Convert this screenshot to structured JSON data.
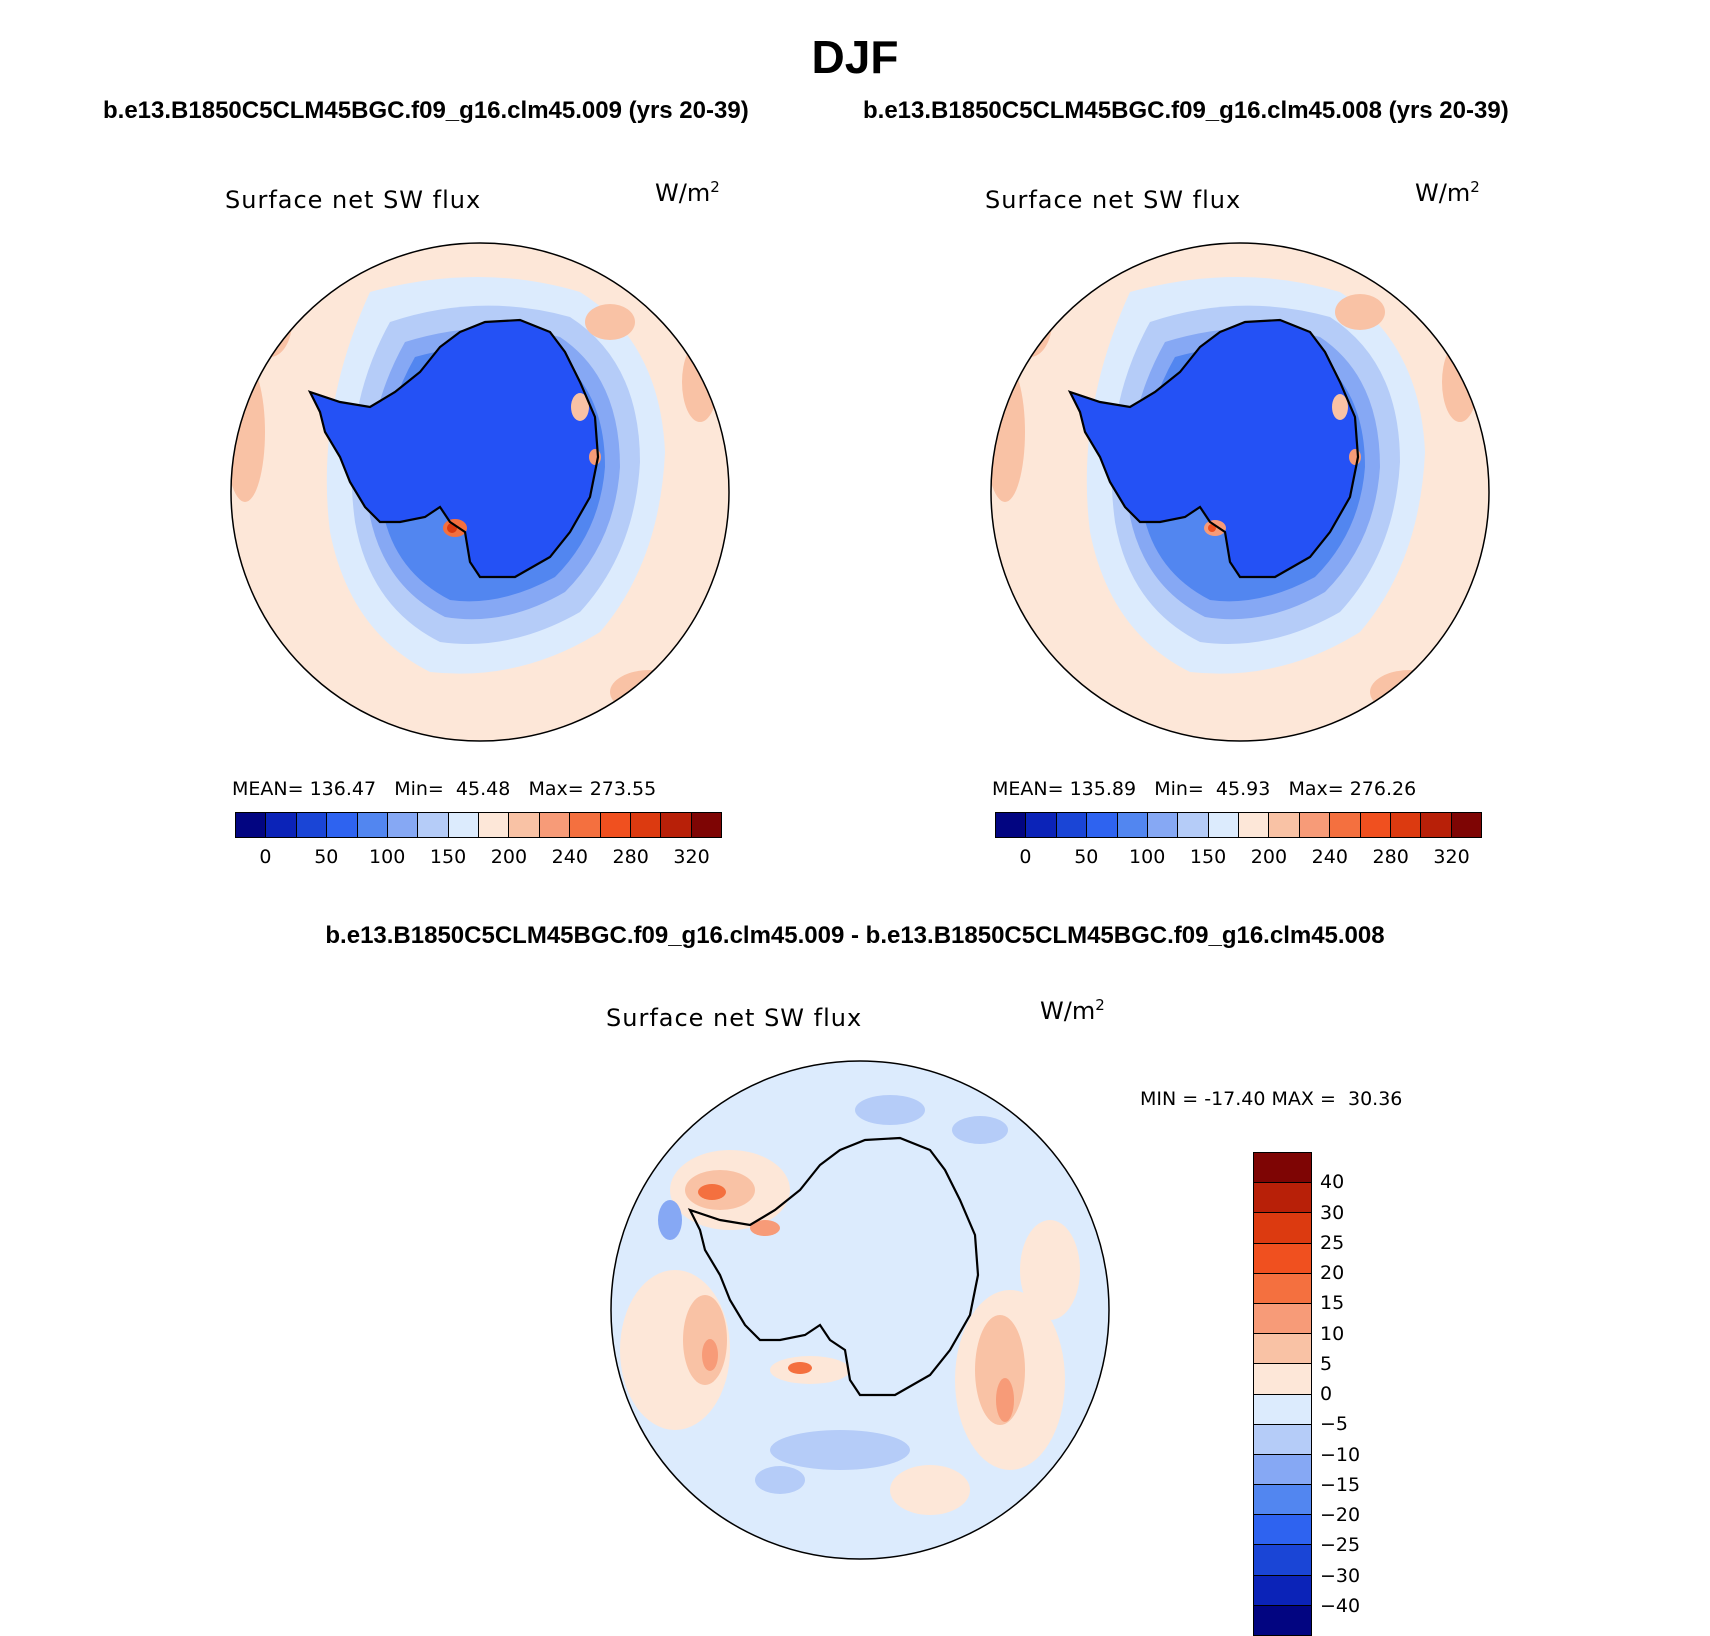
{
  "figure": {
    "season": "DJF",
    "left_title": "b.e13.B1850C5CLM45BGC.f09_g16.clm45.009 (yrs 20-39)",
    "right_title": "b.e13.B1850C5CLM45BGC.f09_g16.clm45.008 (yrs 20-39)",
    "diff_title": "b.e13.B1850C5CLM45BGC.f09_g16.clm45.009 - b.e13.B1850C5CLM45BGC.f09_g16.clm45.008"
  },
  "chart_data": [
    {
      "type": "heatmap",
      "projection": "south-polar-stereographic",
      "title": "Surface net SW flux",
      "units_base": "W/m",
      "units_exp": "2",
      "stats": {
        "mean_label": "MEAN=",
        "mean": "136.47",
        "min_label": "Min=",
        "min": "45.48",
        "max_label": "Max=",
        "max": "273.55"
      },
      "colorbar": {
        "orientation": "horizontal",
        "ticks": [
          "0",
          "50",
          "100",
          "150",
          "200",
          "240",
          "280",
          "320"
        ],
        "colors": [
          "#020581",
          "#0b23b8",
          "#1a45d6",
          "#2e63f0",
          "#5286f0",
          "#86a8f4",
          "#b5ccf8",
          "#dcebfd",
          "#fde7d8",
          "#f9c2a5",
          "#f79b78",
          "#f4703f",
          "#f0501f",
          "#dc3a10",
          "#b82008",
          "#7e0504"
        ]
      }
    },
    {
      "type": "heatmap",
      "projection": "south-polar-stereographic",
      "title": "Surface net SW flux",
      "units_base": "W/m",
      "units_exp": "2",
      "stats": {
        "mean_label": "MEAN=",
        "mean": "135.89",
        "min_label": "Min=",
        "min": "45.93",
        "max_label": "Max=",
        "max": "276.26"
      },
      "colorbar": {
        "orientation": "horizontal",
        "ticks": [
          "0",
          "50",
          "100",
          "150",
          "200",
          "240",
          "280",
          "320"
        ],
        "colors": [
          "#020581",
          "#0b23b8",
          "#1a45d6",
          "#2e63f0",
          "#5286f0",
          "#86a8f4",
          "#b5ccf8",
          "#dcebfd",
          "#fde7d8",
          "#f9c2a5",
          "#f79b78",
          "#f4703f",
          "#f0501f",
          "#dc3a10",
          "#b82008",
          "#7e0504"
        ]
      }
    },
    {
      "type": "heatmap",
      "projection": "south-polar-stereographic",
      "title": "Surface net SW flux",
      "units_base": "W/m",
      "units_exp": "2",
      "stats": {
        "min_label": "MIN =",
        "min": "-17.40",
        "max_label": "MAX =",
        "max": "30.36"
      },
      "colorbar": {
        "orientation": "vertical",
        "ticks": [
          "40",
          "30",
          "25",
          "20",
          "15",
          "10",
          "5",
          "0",
          "−5",
          "−10",
          "−15",
          "−20",
          "−25",
          "−30",
          "−40"
        ],
        "colors": [
          "#7e0504",
          "#b82008",
          "#dc3a10",
          "#f0501f",
          "#f4703f",
          "#f79b78",
          "#f9c2a5",
          "#fde7d8",
          "#dcebfd",
          "#b5ccf8",
          "#86a8f4",
          "#5286f0",
          "#2e63f0",
          "#1a45d6",
          "#0b23b8",
          "#020581"
        ]
      }
    }
  ]
}
